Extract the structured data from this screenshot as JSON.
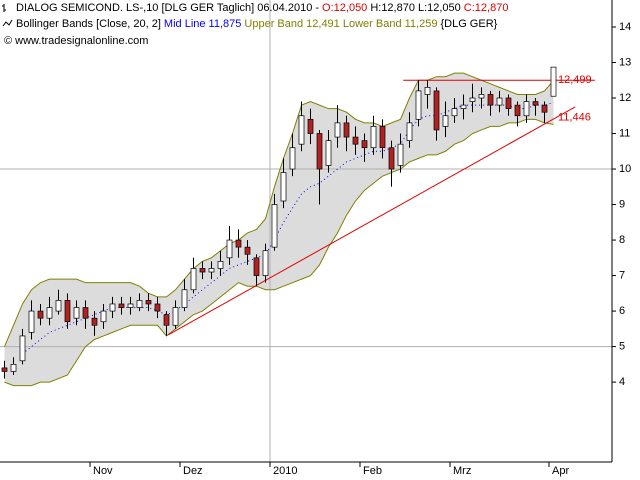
{
  "chart_data": {
    "type": "candlestick",
    "title": "DIALOG SEMICOND.   LS-,10 [DLG GER  Taglich] 06.04.2010 -",
    "ohlc_text": {
      "o": "O:12,050",
      "h": "H:12,870",
      "l": "L:12,050",
      "c": "C:12,870"
    },
    "indicator": {
      "name": "Bollinger Bands [Close, 20, 2]",
      "mid": "Mid Line 11,875",
      "bands": "Upper Band 12,491 Lower Band 11,259",
      "symbol": "{DLG GER}"
    },
    "copyright": "© www.tradesignalonline.com",
    "x": [
      0,
      1,
      2,
      3,
      4,
      5,
      6,
      7,
      8,
      9,
      10,
      11,
      12,
      13,
      14,
      15,
      16,
      17,
      18,
      19,
      20,
      21,
      22,
      23,
      24,
      25,
      26,
      27,
      28,
      29,
      30,
      31,
      32,
      33,
      34,
      35,
      36,
      37,
      38,
      39,
      40,
      41,
      42,
      43,
      44,
      45,
      46,
      47,
      48,
      49,
      50,
      51,
      52,
      53,
      54,
      55,
      56,
      57,
      58,
      59,
      60,
      61
    ],
    "open": [
      4.4,
      4.3,
      4.6,
      5.4,
      6.0,
      5.8,
      6.0,
      6.3,
      5.8,
      6.1,
      5.8,
      5.7,
      6.0,
      6.2,
      6.1,
      6.1,
      6.3,
      6.2,
      5.9,
      5.6,
      6.1,
      6.6,
      7.2,
      7.1,
      7.2,
      7.5,
      8.0,
      7.8,
      7.5,
      7.0,
      7.8,
      9.1,
      10.0,
      10.7,
      11.4,
      11.0,
      10.1,
      10.9,
      11.3,
      10.9,
      10.8,
      10.6,
      11.2,
      10.6,
      10.1,
      10.8,
      11.4,
      12.1,
      12.2,
      11.2,
      11.5,
      11.7,
      11.9,
      12.0,
      12.1,
      11.8,
      12.0,
      11.8,
      11.5,
      11.9,
      11.8,
      12.05
    ],
    "high": [
      4.6,
      4.7,
      5.5,
      6.3,
      6.2,
      6.4,
      6.6,
      6.5,
      6.3,
      6.3,
      6.0,
      6.2,
      6.4,
      6.4,
      6.4,
      6.5,
      6.5,
      6.4,
      6.0,
      6.3,
      6.9,
      7.5,
      7.4,
      7.4,
      7.7,
      8.4,
      8.3,
      8.0,
      7.6,
      7.9,
      9.3,
      10.3,
      11.0,
      11.9,
      11.7,
      11.1,
      11.1,
      11.8,
      11.5,
      11.2,
      11.0,
      11.5,
      11.4,
      10.8,
      11.0,
      11.6,
      12.5,
      12.5,
      12.3,
      11.9,
      12.0,
      12.1,
      12.4,
      12.3,
      12.2,
      12.2,
      12.1,
      11.9,
      12.1,
      12.0,
      11.9,
      12.87
    ],
    "low": [
      4.1,
      4.2,
      4.5,
      5.2,
      5.6,
      5.6,
      5.9,
      5.5,
      5.6,
      5.5,
      5.3,
      5.5,
      5.8,
      5.9,
      5.9,
      6.0,
      6.0,
      5.8,
      5.3,
      5.5,
      6.0,
      6.5,
      6.9,
      6.9,
      7.0,
      7.3,
      7.5,
      7.3,
      6.7,
      6.8,
      7.7,
      8.9,
      9.8,
      10.5,
      10.7,
      9.0,
      9.9,
      10.6,
      10.5,
      10.4,
      10.2,
      10.4,
      10.3,
      9.5,
      9.9,
      10.6,
      11.2,
      11.7,
      10.8,
      10.9,
      11.3,
      11.4,
      11.6,
      11.7,
      11.5,
      11.6,
      11.5,
      11.2,
      11.3,
      11.5,
      11.3,
      12.05
    ],
    "close": [
      4.3,
      4.5,
      5.3,
      6.0,
      5.8,
      6.1,
      6.3,
      5.7,
      6.1,
      5.8,
      5.6,
      6.0,
      6.2,
      6.1,
      6.2,
      6.3,
      6.2,
      6.0,
      5.6,
      6.1,
      6.6,
      7.2,
      7.1,
      7.2,
      7.4,
      8.0,
      7.8,
      7.6,
      7.0,
      7.7,
      9.0,
      9.9,
      10.6,
      11.5,
      11.0,
      10.0,
      10.8,
      11.3,
      10.9,
      10.7,
      10.6,
      11.2,
      10.6,
      10.0,
      10.7,
      11.3,
      12.2,
      12.3,
      11.1,
      11.5,
      11.7,
      11.8,
      12.0,
      12.1,
      11.8,
      12.0,
      11.7,
      11.5,
      11.9,
      11.8,
      11.6,
      12.87
    ],
    "up_color": "#ffffff",
    "down_color": "#b22222",
    "upper": [
      5.0,
      5.6,
      6.2,
      6.6,
      6.8,
      6.9,
      6.9,
      6.9,
      6.9,
      6.8,
      6.8,
      6.8,
      6.8,
      6.8,
      6.8,
      6.7,
      6.5,
      6.4,
      6.4,
      6.6,
      6.9,
      7.2,
      7.4,
      7.5,
      7.7,
      7.9,
      8.0,
      8.2,
      8.3,
      8.6,
      9.5,
      10.3,
      11.0,
      11.8,
      11.9,
      11.8,
      11.7,
      11.7,
      11.6,
      11.4,
      11.3,
      11.3,
      11.2,
      11.3,
      11.4,
      12.0,
      12.5,
      12.5,
      12.6,
      12.6,
      12.7,
      12.7,
      12.6,
      12.5,
      12.4,
      12.3,
      12.2,
      12.1,
      12.1,
      12.1,
      12.2,
      12.491
    ],
    "lower": [
      4.0,
      3.9,
      3.9,
      3.9,
      4.0,
      4.0,
      4.1,
      4.2,
      4.6,
      5.0,
      5.2,
      5.3,
      5.4,
      5.5,
      5.6,
      5.6,
      5.6,
      5.6,
      5.3,
      5.5,
      5.7,
      5.9,
      6.0,
      6.2,
      6.4,
      6.6,
      6.8,
      6.7,
      6.7,
      6.6,
      6.6,
      6.7,
      6.8,
      6.9,
      7.0,
      7.3,
      7.8,
      8.2,
      8.7,
      9.1,
      9.4,
      9.6,
      9.8,
      9.9,
      10.0,
      10.2,
      10.3,
      10.4,
      10.4,
      10.5,
      10.7,
      10.8,
      11.0,
      11.1,
      11.2,
      11.2,
      11.3,
      11.3,
      11.4,
      11.4,
      11.3,
      11.259
    ],
    "mid": [
      null,
      null,
      4.8,
      5.0,
      5.2,
      5.4,
      5.5,
      5.6,
      5.7,
      5.8,
      5.9,
      6.0,
      6.1,
      6.1,
      6.1,
      6.1,
      6.1,
      6.0,
      5.9,
      6.0,
      6.2,
      6.4,
      6.6,
      6.8,
      7.0,
      7.2,
      7.3,
      7.4,
      7.5,
      7.6,
      8.0,
      8.5,
      8.9,
      9.3,
      9.5,
      9.6,
      9.8,
      10.0,
      10.2,
      10.3,
      10.4,
      10.5,
      10.5,
      10.6,
      10.7,
      11.1,
      11.4,
      11.5,
      11.5,
      11.6,
      11.7,
      11.8,
      11.8,
      11.8,
      11.8,
      11.8,
      11.8,
      11.7,
      11.7,
      11.8,
      11.8,
      11.875
    ],
    "band_color": "#808000",
    "band_fill": "#dcdcdc",
    "mid_color": "#0000ff",
    "trendlines": [
      {
        "x": [
          44.3,
          65.6
        ],
        "y": [
          12.499,
          12.499
        ],
        "value_label": "12,499",
        "color": "#e00000"
      },
      {
        "x": [
          18.2,
          63.4
        ],
        "y": [
          5.33,
          11.75
        ],
        "label_value": 11.446,
        "value_label": "11,446",
        "color": "#e00000"
      }
    ],
    "xlim": [
      -0.5,
      67.5
    ],
    "ylim": [
      1.75,
      14.76
    ],
    "xticks": [
      {
        "value": 9.5,
        "label": "Nov"
      },
      {
        "value": 19.5,
        "label": "Dez"
      },
      {
        "value": 29.5,
        "label": "2010"
      },
      {
        "value": 39.5,
        "label": "Feb"
      },
      {
        "value": 49.5,
        "label": "Mrz"
      },
      {
        "value": 60.5,
        "label": "Apr"
      }
    ],
    "yticks": [
      4,
      5,
      6,
      7,
      8,
      9,
      10,
      11,
      12,
      13,
      14
    ],
    "grid_y": [
      5,
      10
    ],
    "grid_x": [
      29.5
    ]
  }
}
